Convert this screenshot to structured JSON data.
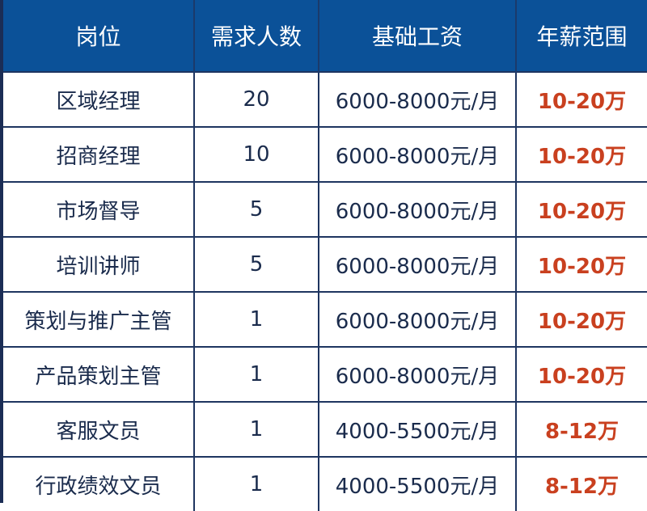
{
  "headers": [
    "岗位",
    "需求人数",
    "基础工资",
    "年薪范围"
  ],
  "rows": [
    {
      "position": "区域经理",
      "count": "20",
      "base": "6000-8000元/月",
      "annual": "10-20万"
    },
    {
      "position": "招商经理",
      "count": "10",
      "base": "6000-8000元/月",
      "annual": "10-20万"
    },
    {
      "position": "市场督导",
      "count": "5",
      "base": "6000-8000元/月",
      "annual": "10-20万"
    },
    {
      "position": "培训讲师",
      "count": "5",
      "base": "6000-8000元/月",
      "annual": "10-20万"
    },
    {
      "position": "策划与推广主管",
      "count": "1",
      "base": "6000-8000元/月",
      "annual": "10-20万"
    },
    {
      "position": "产品策划主管",
      "count": "1",
      "base": "6000-8000元/月",
      "annual": "10-20万"
    },
    {
      "position": "客服文员",
      "count": "1",
      "base": "4000-5500元/月",
      "annual": "8-12万"
    },
    {
      "position": "行政绩效文员",
      "count": "1",
      "base": "4000-5500元/月",
      "annual": "8-12万"
    }
  ],
  "colors": {
    "header_bg": "#0b5198",
    "text": "#1a2b4c",
    "salary": "#c9401f",
    "border": "#1e3560"
  }
}
